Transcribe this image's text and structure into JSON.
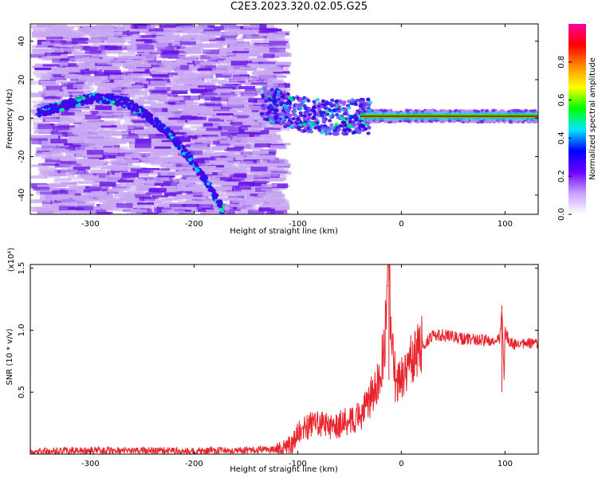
{
  "title": "C2E3.2023.320.02.05.G25",
  "colors": {
    "trace": "#e8232b",
    "scatter_faint": "#c9a8f2",
    "scatter_strong": "#6a16e6",
    "axis": "#000000"
  },
  "chart_data": [
    {
      "type": "heatmap",
      "title": "C2E3.2023.320.02.05.G25",
      "xlabel": "Height of straight line (km)",
      "ylabel": "Frequency (Hz)",
      "xlim": [
        -358,
        132
      ],
      "ylim": [
        -50,
        49
      ],
      "xticks": [
        -300,
        -200,
        -100,
        0,
        100
      ],
      "xtick_labels": [
        "-300",
        "-200",
        "-100",
        "0",
        "100"
      ],
      "yticks": [
        -40,
        -20,
        0,
        20,
        40
      ],
      "ytick_labels": [
        "-40",
        "-20",
        "0",
        "20",
        "40"
      ],
      "noise_region": {
        "x": [
          -358,
          -122
        ],
        "level": 0.3
      },
      "curved_feature": [
        {
          "x": -350,
          "y": 3
        },
        {
          "x": -330,
          "y": 6
        },
        {
          "x": -310,
          "y": 9
        },
        {
          "x": -295,
          "y": 10.5
        },
        {
          "x": -280,
          "y": 10
        },
        {
          "x": -265,
          "y": 8
        },
        {
          "x": -250,
          "y": 3
        },
        {
          "x": -235,
          "y": -3
        },
        {
          "x": -222,
          "y": -9
        },
        {
          "x": -210,
          "y": -17
        },
        {
          "x": -200,
          "y": -24
        },
        {
          "x": -190,
          "y": -32
        },
        {
          "x": -180,
          "y": -40
        },
        {
          "x": -172,
          "y": -48
        }
      ],
      "band_feature": [
        {
          "x": -135,
          "y": 9
        },
        {
          "x": -120,
          "y": 6
        },
        {
          "x": -100,
          "y": 2
        },
        {
          "x": -80,
          "y": 1
        },
        {
          "x": -60,
          "y": 0
        },
        {
          "x": -40,
          "y": 1
        },
        {
          "x": -20,
          "y": 1
        },
        {
          "x": 0,
          "y": 1
        },
        {
          "x": 40,
          "y": 1
        },
        {
          "x": 80,
          "y": 1
        },
        {
          "x": 132,
          "y": 1
        }
      ],
      "carrier_line": {
        "x": [
          -40,
          132
        ],
        "y": 1
      },
      "colorbar": {
        "label": "Normalized spectral amplitude",
        "range": [
          0,
          1
        ],
        "ticks": [
          0.0,
          0.2,
          0.4,
          0.6,
          0.8
        ],
        "tick_labels": [
          "0.0",
          "0.2",
          "0.4",
          "0.6",
          "0.8"
        ],
        "colormap": [
          "#ffffff",
          "#c8a0ff",
          "#6e00ff",
          "#0000ff",
          "#00e8ff",
          "#00ff00",
          "#ffff00",
          "#ff8c00",
          "#ff0000",
          "#ff00a0"
        ]
      }
    },
    {
      "type": "line",
      "xlabel": "Height of straight line (km)",
      "ylabel": "SNR (10 * v/v)",
      "multiplier_label": "(x10⁴)",
      "xlim": [
        -358,
        132
      ],
      "ylim": [
        0,
        1.53
      ],
      "xticks": [
        -300,
        -200,
        -100,
        0,
        100
      ],
      "xtick_labels": [
        "-300",
        "-200",
        "-100",
        "0",
        "100"
      ],
      "yticks": [
        0.5,
        1.0,
        1.5
      ],
      "ytick_labels": [
        "0.5",
        "1.0",
        "1.5"
      ],
      "series": [
        {
          "x": [
            -358,
            -300,
            -200,
            -150,
            -120,
            -105,
            -100,
            -90,
            -80,
            -70,
            -60,
            -50,
            -40,
            -30,
            -20,
            -15,
            -12,
            -10,
            -5,
            0,
            10,
            20,
            30,
            40,
            60,
            80,
            90,
            95,
            97,
            99,
            100,
            105,
            110,
            120,
            132
          ],
          "y": [
            0.02,
            0.03,
            0.025,
            0.03,
            0.04,
            0.08,
            0.18,
            0.22,
            0.25,
            0.22,
            0.24,
            0.28,
            0.3,
            0.45,
            0.62,
            1.0,
            1.53,
            0.9,
            0.55,
            0.62,
            0.75,
            0.88,
            0.95,
            0.96,
            0.93,
            0.92,
            0.9,
            0.93,
            1.18,
            0.6,
            0.98,
            0.9,
            0.88,
            0.89,
            0.9
          ]
        }
      ]
    }
  ]
}
